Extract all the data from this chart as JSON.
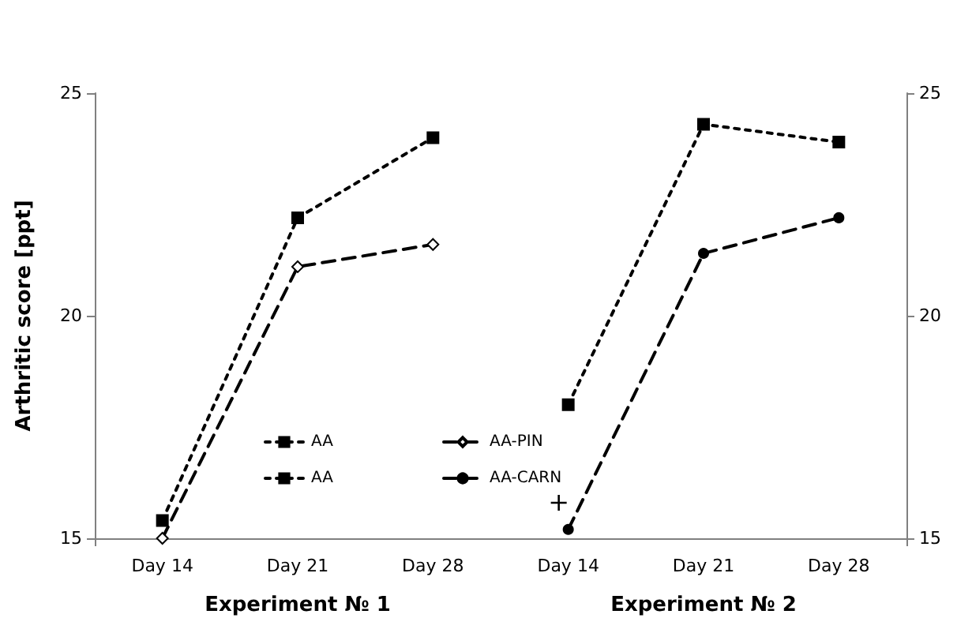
{
  "chart_data": {
    "type": "line",
    "ylabel": "Arthritic score [ppt]",
    "categories": [
      "Day 14",
      "Day 21",
      "Day 28",
      "Day 14",
      "Day 21",
      "Day 28"
    ],
    "series": [
      {
        "name": "AA",
        "color": "#000000",
        "marker": "square",
        "line_style": "dotted",
        "values": [
          15.4,
          22.2,
          24.0,
          null,
          null,
          null
        ]
      },
      {
        "name": "AA",
        "color": "#000000",
        "marker": "square",
        "line_style": "dotted",
        "values": [
          null,
          null,
          null,
          18.0,
          24.3,
          23.9
        ]
      },
      {
        "name": "AA-PIN",
        "color": "#000000",
        "marker": "diamond",
        "line_style": "dashed",
        "values": [
          15.0,
          21.1,
          21.6,
          null,
          null,
          null
        ]
      },
      {
        "name": "AA-CARN",
        "color": "#000000",
        "marker": "circle",
        "line_style": "dashed",
        "values": [
          null,
          null,
          null,
          15.2,
          21.4,
          22.2
        ]
      }
    ],
    "ylim": [
      15,
      25
    ],
    "yticks": [
      15,
      20,
      25
    ],
    "y2lim": [
      15,
      25
    ],
    "y2ticks": [
      15,
      20,
      25
    ],
    "grid": false,
    "legend": "bottom",
    "annotations": [
      "Experiment № 1",
      "Experiment № 2",
      "+"
    ]
  }
}
